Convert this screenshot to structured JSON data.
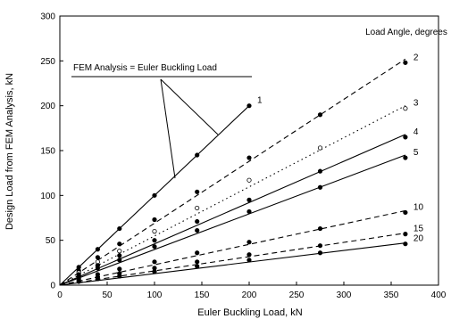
{
  "chart_data": {
    "type": "line",
    "xlabel": "Euler Buckling Load, kN",
    "ylabel": "Design Load from FEM Analysis, kN",
    "xlim": [
      0,
      400
    ],
    "ylim": [
      0,
      300
    ],
    "xticks": [
      0,
      50,
      100,
      150,
      200,
      250,
      300,
      350,
      400
    ],
    "yticks": [
      0,
      50,
      100,
      150,
      200,
      250,
      300
    ],
    "legend_title": "Load Angle, degrees",
    "annotation": "FEM Analysis = Euler Buckling Load",
    "series": [
      {
        "name": "1",
        "line_style": "solid",
        "x": [
          0,
          200
        ],
        "y": [
          0,
          200
        ],
        "points": [
          [
            20,
            20
          ],
          [
            40,
            40
          ],
          [
            63,
            63
          ],
          [
            100,
            100
          ],
          [
            145,
            145
          ],
          [
            200,
            200
          ]
        ]
      },
      {
        "name": "2",
        "line_style": "dashed",
        "x": [
          0,
          365
        ],
        "y": [
          0,
          252
        ],
        "points": [
          [
            20,
            16
          ],
          [
            40,
            31
          ],
          [
            63,
            46
          ],
          [
            100,
            73
          ],
          [
            145,
            104
          ],
          [
            200,
            142
          ],
          [
            275,
            190
          ],
          [
            365,
            248
          ]
        ]
      },
      {
        "name": "3",
        "line_style": "dotted",
        "x": [
          0,
          365
        ],
        "y": [
          0,
          200
        ],
        "points": [
          [
            20,
            14
          ],
          [
            40,
            26
          ],
          [
            63,
            38
          ],
          [
            100,
            60
          ],
          [
            145,
            86
          ],
          [
            200,
            117
          ],
          [
            275,
            153
          ],
          [
            365,
            197
          ]
        ]
      },
      {
        "name": "4",
        "line_style": "solid",
        "x": [
          0,
          365
        ],
        "y": [
          0,
          168
        ],
        "points": [
          [
            20,
            12
          ],
          [
            40,
            22
          ],
          [
            63,
            33
          ],
          [
            100,
            50
          ],
          [
            145,
            71
          ],
          [
            200,
            95
          ],
          [
            275,
            127
          ],
          [
            365,
            165
          ]
        ]
      },
      {
        "name": "5",
        "line_style": "solid",
        "x": [
          0,
          365
        ],
        "y": [
          0,
          145
        ],
        "points": [
          [
            20,
            10
          ],
          [
            40,
            19
          ],
          [
            63,
            28
          ],
          [
            100,
            43
          ],
          [
            145,
            61
          ],
          [
            200,
            82
          ],
          [
            275,
            109
          ],
          [
            365,
            142
          ]
        ]
      },
      {
        "name": "10",
        "line_style": "dashed",
        "x": [
          0,
          365
        ],
        "y": [
          0,
          83
        ],
        "points": [
          [
            20,
            7
          ],
          [
            40,
            12
          ],
          [
            63,
            18
          ],
          [
            100,
            26
          ],
          [
            145,
            36
          ],
          [
            200,
            48
          ],
          [
            275,
            63
          ],
          [
            365,
            81
          ]
        ]
      },
      {
        "name": "15",
        "line_style": "dashed",
        "x": [
          0,
          365
        ],
        "y": [
          0,
          58
        ],
        "points": [
          [
            20,
            5
          ],
          [
            40,
            9
          ],
          [
            63,
            13
          ],
          [
            100,
            19
          ],
          [
            145,
            26
          ],
          [
            200,
            34
          ],
          [
            275,
            44
          ],
          [
            365,
            57
          ]
        ]
      },
      {
        "name": "20",
        "line_style": "solid",
        "x": [
          0,
          365
        ],
        "y": [
          0,
          47
        ],
        "points": [
          [
            20,
            4
          ],
          [
            40,
            7
          ],
          [
            63,
            10
          ],
          [
            100,
            15
          ],
          [
            145,
            21
          ],
          [
            200,
            28
          ],
          [
            275,
            36
          ],
          [
            365,
            46
          ]
        ]
      }
    ],
    "grid": false,
    "legend": "inline-right"
  }
}
